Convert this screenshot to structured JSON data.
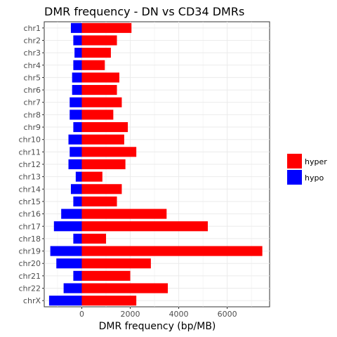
{
  "chart_data": {
    "type": "bar",
    "orientation": "horizontal",
    "title": "DMR frequency - DN vs CD34 DMRs",
    "xlabel": "DMR frequency (bp/MB)",
    "ylabel": "",
    "categories": [
      "chr1",
      "chr2",
      "chr3",
      "chr4",
      "chr5",
      "chr6",
      "chr7",
      "chr8",
      "chr9",
      "chr10",
      "chr11",
      "chr12",
      "chr13",
      "chr14",
      "chr15",
      "chr16",
      "chr17",
      "chr18",
      "chr19",
      "chr20",
      "chr21",
      "chr22",
      "chrX"
    ],
    "series": [
      {
        "name": "hyper",
        "color": "#ff0000",
        "values": [
          2050,
          1450,
          1200,
          950,
          1550,
          1450,
          1650,
          1300,
          1900,
          1750,
          2250,
          1800,
          850,
          1650,
          1450,
          3500,
          5200,
          1000,
          7450,
          2850,
          2000,
          3550,
          2250
        ]
      },
      {
        "name": "hypo",
        "color": "#0000ff",
        "values": [
          -450,
          -350,
          -300,
          -350,
          -400,
          -400,
          -500,
          -500,
          -350,
          -550,
          -500,
          -550,
          -250,
          -450,
          -350,
          -850,
          -1150,
          -350,
          -1300,
          -1050,
          -350,
          -750,
          -1350
        ]
      }
    ],
    "xlim": [
      -1550,
      7750
    ],
    "xticks": [
      0,
      2000,
      4000,
      6000
    ],
    "xtick_labels": [
      "0",
      "2000",
      "4000",
      "6000"
    ],
    "grid": true,
    "legend_position": "right"
  }
}
